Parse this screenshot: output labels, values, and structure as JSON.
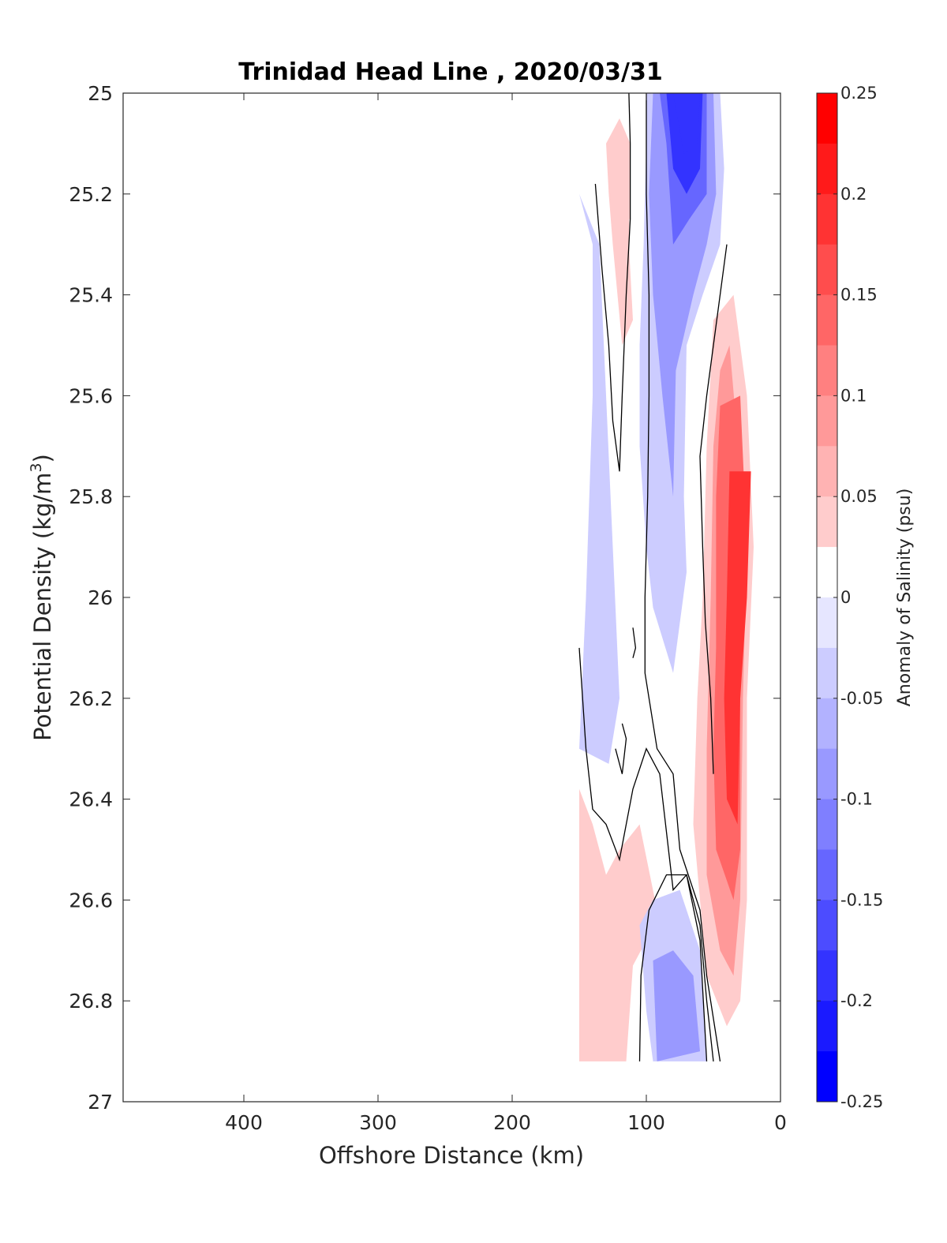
{
  "chart_data": {
    "type": "heatmap",
    "title": "Trinidad Head Line , 2020/03/31",
    "xlabel": "Offshore Distance (km)",
    "ylabel": "Potential Density (kg/m",
    "ylabel_sup": "3",
    "ylabel_close": ")",
    "xlim": [
      490,
      0
    ],
    "ylim": [
      25,
      27
    ],
    "y_reversed": true,
    "x_reversed": true,
    "x_ticks": [
      400,
      300,
      200,
      100,
      0
    ],
    "x_tick_labels": [
      "400",
      "300",
      "200",
      "100",
      "0"
    ],
    "y_ticks": [
      25,
      25.2,
      25.4,
      25.6,
      25.8,
      26,
      26.2,
      26.4,
      26.6,
      26.8,
      27
    ],
    "y_tick_labels": [
      "25",
      "25.2",
      "25.4",
      "25.6",
      "25.8",
      "26",
      "26.2",
      "26.4",
      "26.6",
      "26.8",
      "27"
    ],
    "colorbar": {
      "label": "Anomaly of Salinity (psu)",
      "range": [
        -0.25,
        0.25
      ],
      "ticks": [
        0.25,
        0.2,
        0.15,
        0.1,
        0.05,
        0,
        -0.05,
        -0.1,
        -0.15,
        -0.2,
        -0.25
      ],
      "tick_labels": [
        "0.25",
        "0.2",
        "0.15",
        "0.1",
        "0.05",
        "0",
        "-0.05",
        "-0.1",
        "-0.15",
        "-0.2",
        "-0.25"
      ],
      "levels": 20,
      "colors": {
        "max": "#ff0000",
        "mid": "#ffffff",
        "min": "#0000ff"
      }
    },
    "zero_contour": true,
    "regions": [
      {
        "level": -0.05,
        "points": [
          [
            150,
            25.2
          ],
          [
            140,
            25.3
          ],
          [
            140,
            25.6
          ],
          [
            145,
            26.0
          ],
          [
            150,
            26.3
          ],
          [
            128,
            26.33
          ],
          [
            120,
            26.2
          ],
          [
            125,
            25.9
          ],
          [
            130,
            25.6
          ],
          [
            135,
            25.3
          ]
        ]
      },
      {
        "level": 0.05,
        "points": [
          [
            130,
            25.1
          ],
          [
            120,
            25.05
          ],
          [
            112,
            25.1
          ],
          [
            113,
            25.3
          ],
          [
            110,
            25.45
          ],
          [
            118,
            25.5
          ],
          [
            125,
            25.3
          ],
          [
            128,
            25.2
          ]
        ]
      },
      {
        "level": 0.05,
        "points": [
          [
            118,
            25.15
          ],
          [
            112,
            25.12
          ],
          [
            112,
            25.25
          ],
          [
            118,
            25.25
          ]
        ]
      },
      {
        "level": -0.05,
        "points": [
          [
            100,
            25.0
          ],
          [
            45,
            25.0
          ],
          [
            42,
            25.15
          ],
          [
            45,
            25.3
          ],
          [
            58,
            25.4
          ],
          [
            70,
            25.5
          ],
          [
            72,
            25.8
          ],
          [
            70,
            25.95
          ],
          [
            75,
            26.05
          ],
          [
            80,
            26.15
          ],
          [
            95,
            26.02
          ],
          [
            100,
            25.9
          ],
          [
            105,
            25.7
          ],
          [
            105,
            25.5
          ],
          [
            102,
            25.3
          ],
          [
            100,
            25.1
          ]
        ]
      },
      {
        "level": -0.1,
        "points": [
          [
            95,
            25.0
          ],
          [
            50,
            25.0
          ],
          [
            48,
            25.2
          ],
          [
            55,
            25.3
          ],
          [
            65,
            25.4
          ],
          [
            78,
            25.55
          ],
          [
            80,
            25.8
          ],
          [
            88,
            25.6
          ],
          [
            95,
            25.4
          ],
          [
            98,
            25.2
          ]
        ]
      },
      {
        "level": -0.15,
        "points": [
          [
            90,
            25.0
          ],
          [
            55,
            25.0
          ],
          [
            55,
            25.2
          ],
          [
            68,
            25.25
          ],
          [
            80,
            25.3
          ],
          [
            85,
            25.1
          ]
        ]
      },
      {
        "level": -0.2,
        "points": [
          [
            85,
            25.0
          ],
          [
            58,
            25.0
          ],
          [
            60,
            25.15
          ],
          [
            70,
            25.2
          ],
          [
            80,
            25.15
          ]
        ]
      },
      {
        "level": -0.2,
        "points": [
          [
            80,
            25.0
          ],
          [
            60,
            25.0
          ],
          [
            62,
            25.1
          ],
          [
            72,
            25.12
          ]
        ]
      },
      {
        "level": 0.05,
        "points": [
          [
            35,
            25.4
          ],
          [
            50,
            25.45
          ],
          [
            55,
            25.7
          ],
          [
            58,
            26.0
          ],
          [
            62,
            26.2
          ],
          [
            65,
            26.45
          ],
          [
            60,
            26.6
          ],
          [
            55,
            26.75
          ],
          [
            40,
            26.85
          ],
          [
            30,
            26.8
          ],
          [
            25,
            26.6
          ],
          [
            25,
            26.2
          ],
          [
            20,
            25.9
          ],
          [
            25,
            25.6
          ]
        ]
      },
      {
        "level": 0.1,
        "points": [
          [
            38,
            25.5
          ],
          [
            45,
            25.55
          ],
          [
            50,
            25.7
          ],
          [
            52,
            26.0
          ],
          [
            55,
            26.3
          ],
          [
            55,
            26.55
          ],
          [
            45,
            26.7
          ],
          [
            35,
            26.75
          ],
          [
            30,
            26.6
          ],
          [
            28,
            26.2
          ],
          [
            25,
            25.9
          ]
        ]
      },
      {
        "level": 0.15,
        "points": [
          [
            30,
            25.6
          ],
          [
            45,
            25.62
          ],
          [
            48,
            25.8
          ],
          [
            48,
            26.1
          ],
          [
            50,
            26.3
          ],
          [
            48,
            26.5
          ],
          [
            35,
            26.6
          ],
          [
            30,
            26.5
          ],
          [
            30,
            26.2
          ],
          [
            25,
            25.9
          ]
        ]
      },
      {
        "level": 0.2,
        "points": [
          [
            22,
            25.75
          ],
          [
            38,
            25.75
          ],
          [
            40,
            26.0
          ],
          [
            42,
            26.2
          ],
          [
            40,
            26.4
          ],
          [
            32,
            26.45
          ],
          [
            30,
            26.2
          ],
          [
            25,
            26.0
          ]
        ]
      },
      {
        "level": 0.05,
        "points": [
          [
            150,
            26.38
          ],
          [
            140,
            26.45
          ],
          [
            130,
            26.55
          ],
          [
            120,
            26.5
          ],
          [
            105,
            26.45
          ],
          [
            92,
            26.62
          ],
          [
            100,
            26.68
          ],
          [
            110,
            26.73
          ],
          [
            115,
            26.92
          ],
          [
            150,
            26.92
          ]
        ]
      },
      {
        "level": -0.05,
        "points": [
          [
            105,
            26.65
          ],
          [
            95,
            26.6
          ],
          [
            75,
            26.58
          ],
          [
            60,
            26.7
          ],
          [
            55,
            26.92
          ],
          [
            95,
            26.92
          ],
          [
            100,
            26.82
          ]
        ]
      },
      {
        "level": -0.1,
        "points": [
          [
            95,
            26.72
          ],
          [
            80,
            26.7
          ],
          [
            65,
            26.75
          ],
          [
            60,
            26.9
          ],
          [
            92,
            26.92
          ]
        ]
      }
    ],
    "contours": [
      {
        "level": 0,
        "points": [
          [
            100,
            25.0
          ],
          [
            100,
            25.2
          ],
          [
            98,
            25.4
          ],
          [
            98,
            25.6
          ],
          [
            99,
            25.8
          ],
          [
            101,
            26.0
          ],
          [
            101,
            26.15
          ],
          [
            92,
            26.3
          ],
          [
            80,
            26.35
          ],
          [
            75,
            26.5
          ],
          [
            60,
            26.62
          ],
          [
            55,
            26.75
          ],
          [
            45,
            26.92
          ]
        ]
      },
      {
        "level": 0,
        "points": [
          [
            138,
            25.18
          ],
          [
            133,
            25.35
          ],
          [
            128,
            25.5
          ],
          [
            125,
            25.65
          ],
          [
            120,
            25.75
          ],
          [
            118,
            25.6
          ],
          [
            115,
            25.4
          ],
          [
            112,
            25.25
          ],
          [
            112,
            25.1
          ],
          [
            113,
            25.0
          ]
        ]
      },
      {
        "level": 0,
        "points": [
          [
            150,
            26.1
          ],
          [
            145,
            26.3
          ],
          [
            140,
            26.42
          ],
          [
            130,
            26.45
          ],
          [
            120,
            26.52
          ],
          [
            110,
            26.38
          ],
          [
            100,
            26.3
          ],
          [
            90,
            26.35
          ],
          [
            80,
            26.58
          ],
          [
            70,
            26.55
          ],
          [
            60,
            26.68
          ],
          [
            55,
            26.92
          ]
        ]
      },
      {
        "level": 0,
        "points": [
          [
            118,
            26.25
          ],
          [
            115,
            26.28
          ],
          [
            118,
            26.35
          ],
          [
            123,
            26.3
          ]
        ]
      },
      {
        "level": 0,
        "points": [
          [
            110,
            26.06
          ],
          [
            108,
            26.1
          ],
          [
            110,
            26.12
          ]
        ]
      },
      {
        "level": 0,
        "points": [
          [
            40,
            25.3
          ],
          [
            45,
            25.4
          ],
          [
            50,
            25.5
          ],
          [
            55,
            25.6
          ],
          [
            60,
            25.72
          ],
          [
            58,
            25.9
          ],
          [
            56,
            26.05
          ],
          [
            52,
            26.2
          ],
          [
            50,
            26.35
          ]
        ]
      },
      {
        "level": 0,
        "points": [
          [
            105,
            26.92
          ],
          [
            104,
            26.75
          ],
          [
            98,
            26.62
          ],
          [
            85,
            26.55
          ],
          [
            70,
            26.55
          ],
          [
            60,
            26.65
          ],
          [
            55,
            26.8
          ],
          [
            50,
            26.92
          ]
        ]
      }
    ]
  }
}
